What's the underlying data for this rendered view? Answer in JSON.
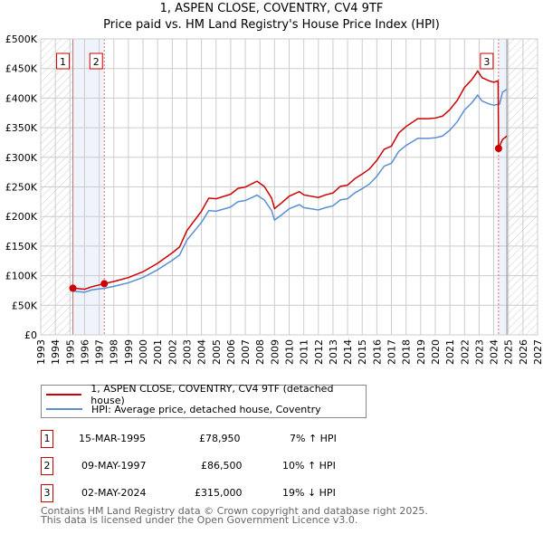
{
  "chart_data": {
    "type": "line",
    "title": "1, ASPEN CLOSE, COVENTRY, CV4 9TF",
    "subtitle": "Price paid vs. HM Land Registry's House Price Index (HPI)",
    "xlim": [
      1993,
      2027
    ],
    "ylim": [
      0,
      500000
    ],
    "x_ticks": [
      "1993",
      "1994",
      "1995",
      "1996",
      "1997",
      "1998",
      "1999",
      "2000",
      "2001",
      "2002",
      "2003",
      "2004",
      "2005",
      "2006",
      "2007",
      "2008",
      "2009",
      "2010",
      "2011",
      "2012",
      "2013",
      "2014",
      "2015",
      "2016",
      "2017",
      "2018",
      "2019",
      "2020",
      "2021",
      "2022",
      "2023",
      "2024",
      "2025",
      "2026",
      "2027"
    ],
    "y_ticks": [
      {
        "v": 0,
        "l": "£0"
      },
      {
        "v": 50000,
        "l": "£50K"
      },
      {
        "v": 100000,
        "l": "£100K"
      },
      {
        "v": 150000,
        "l": "£150K"
      },
      {
        "v": 200000,
        "l": "£200K"
      },
      {
        "v": 250000,
        "l": "£250K"
      },
      {
        "v": 300000,
        "l": "£300K"
      },
      {
        "v": 350000,
        "l": "£350K"
      },
      {
        "v": 400000,
        "l": "£400K"
      },
      {
        "v": 450000,
        "l": "£450K"
      },
      {
        "v": 500000,
        "l": "£500K"
      }
    ],
    "grid": true,
    "hpi_x": [
      1995.2,
      1996,
      1996.5,
      1997.4,
      1998,
      1999,
      2000,
      2001,
      2002,
      2002.5,
      2003,
      2004,
      2004.5,
      2005,
      2006,
      2006.5,
      2007,
      2007.8,
      2008.3,
      2008.8,
      2009,
      2009.5,
      2010,
      2010.7,
      2011,
      2012,
      2012.5,
      2013,
      2013.5,
      2014,
      2014.5,
      2015,
      2015.5,
      2016,
      2016.5,
      2017,
      2017.5,
      2018,
      2018.8,
      2019.5,
      2020,
      2020.5,
      2021,
      2021.5,
      2022,
      2022.5,
      2022.9,
      2023.2,
      2023.7,
      2024,
      2024.4,
      2024.6,
      2024.9
    ],
    "hpi_k": [
      74,
      72,
      76,
      79,
      82,
      88,
      97,
      110,
      126,
      135,
      160,
      190,
      210,
      209,
      216,
      225,
      227,
      236,
      228,
      210,
      194,
      203,
      213,
      220,
      215,
      211,
      215,
      218,
      228,
      230,
      240,
      247,
      255,
      268,
      285,
      290,
      310,
      320,
      332,
      332,
      333,
      336,
      346,
      360,
      380,
      392,
      405,
      395,
      390,
      388,
      390,
      410,
      415
    ],
    "series": [
      {
        "name": "1, ASPEN CLOSE, COVENTRY, CV4 9TF (detached house)",
        "color": "#cc0000"
      },
      {
        "name": "HPI: Average price, detached house, Coventry",
        "color": "#5b8fd4"
      }
    ],
    "sales": [
      {
        "n": "1",
        "x": 1995.2,
        "y": 78950,
        "date": "15-MAR-1995",
        "price": "£78,950",
        "hpi": "7% ↑ HPI"
      },
      {
        "n": "2",
        "x": 1997.35,
        "y": 86500,
        "date": "09-MAY-1997",
        "price": "£86,500",
        "hpi": "10% ↑ HPI"
      },
      {
        "n": "3",
        "x": 2024.33,
        "y": 315000,
        "date": "02-MAY-2024",
        "price": "£315,000",
        "hpi": "19% ↓ HPI"
      }
    ]
  },
  "footer": {
    "line1": "Contains HM Land Registry data © Crown copyright and database right 2025.",
    "line2": "This data is licensed under the Open Government Licence v3.0."
  }
}
